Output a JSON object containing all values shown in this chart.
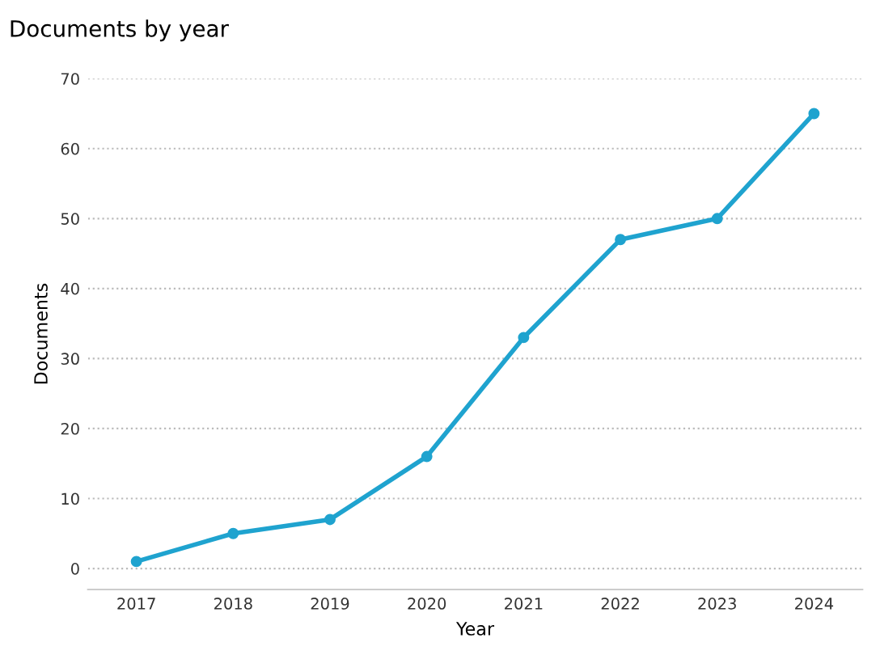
{
  "chart_data": {
    "type": "line",
    "title": "Documents by year",
    "xlabel": "Year",
    "ylabel": "Documents",
    "categories": [
      "2017",
      "2018",
      "2019",
      "2020",
      "2021",
      "2022",
      "2023",
      "2024"
    ],
    "series": [
      {
        "color": "#1fa3cf",
        "values": [
          1,
          5,
          7,
          16,
          33,
          47,
          50,
          65
        ]
      }
    ],
    "ylim": [
      -3,
      70
    ],
    "yticks": [
      0,
      10,
      20,
      30,
      40,
      50,
      60,
      70
    ],
    "grid": "y",
    "marker": "circle",
    "line_style": "solid"
  }
}
